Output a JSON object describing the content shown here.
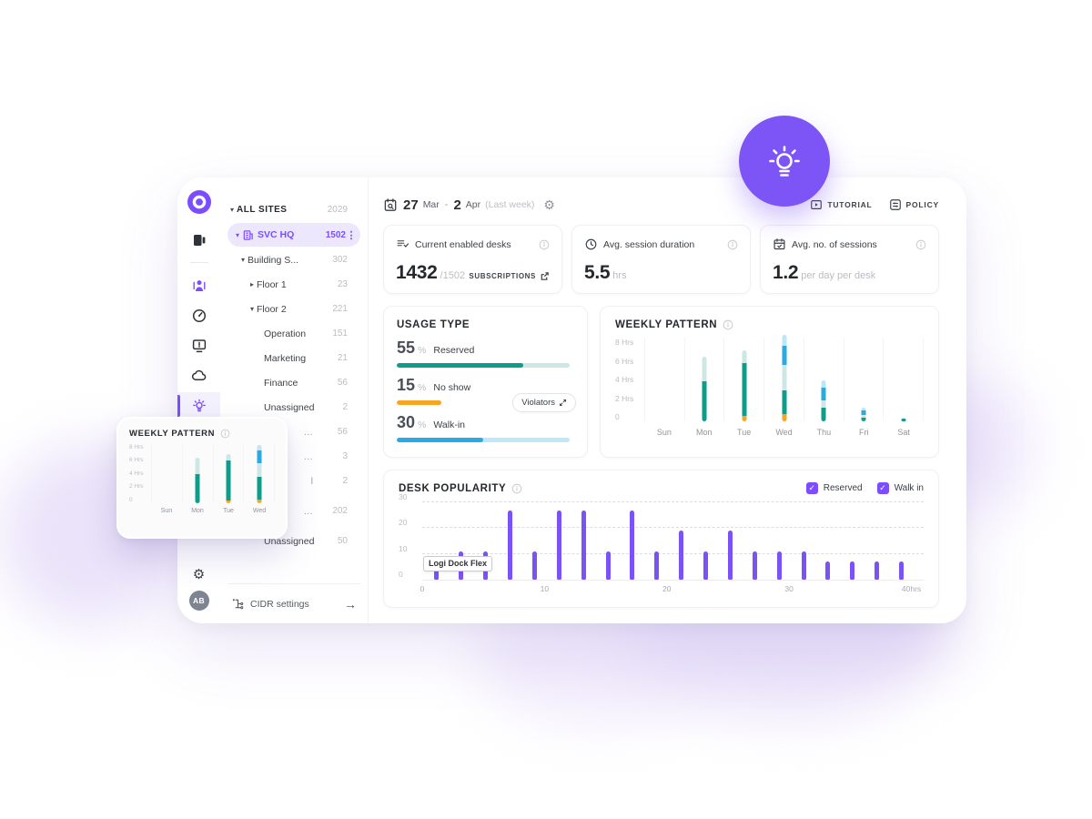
{
  "header": {
    "date": {
      "start_day": "27",
      "start_month": "Mar",
      "dash": "-",
      "end_day": "2",
      "end_month": "Apr",
      "range_note": "(Last week)"
    },
    "tutorial_label": "TUTORIAL",
    "policy_label": "POLICY"
  },
  "sidebar": {
    "avatar_initials": "AB"
  },
  "tree": {
    "all_sites": {
      "label": "ALL SITES",
      "count": "2029"
    },
    "items": [
      {
        "label": "SVC HQ",
        "count": "1502"
      },
      {
        "label": "Building S...",
        "count": "302"
      },
      {
        "label": "Floor 1",
        "count": "23"
      },
      {
        "label": "Floor 2",
        "count": "221"
      },
      {
        "label": "Operation",
        "count": "151"
      },
      {
        "label": "Marketing",
        "count": "21"
      },
      {
        "label": "Finance",
        "count": "56"
      },
      {
        "label": "Unassigned",
        "count": "2"
      },
      {
        "label": "…",
        "count": "56"
      },
      {
        "label": "…",
        "count": "3"
      },
      {
        "label": "l",
        "count": "2"
      },
      {
        "label": "…",
        "count": "202"
      },
      {
        "label": "Unassigned",
        "count": "50"
      }
    ],
    "cidr_label": "CIDR settings"
  },
  "stats": [
    {
      "title": "Current enabled desks",
      "value": "1432",
      "sub": "/1502",
      "link": "SUBSCRIPTIONS"
    },
    {
      "title": "Avg. session duration",
      "value": "5.5",
      "sub": "hrs"
    },
    {
      "title": "Avg. no. of sessions",
      "value": "1.2",
      "sub": "per day per desk"
    }
  ],
  "usage": {
    "title": "USAGE TYPE",
    "violators_label": "Violators",
    "rows": [
      {
        "value": "55",
        "unit": "%",
        "label": "Reserved",
        "bar_fill_pct": 73,
        "color": "#0e9c8b",
        "track": "#cde7e4"
      },
      {
        "value": "15",
        "unit": "%",
        "label": "No show",
        "bar_fill_pct": 26,
        "color": "#f6a623",
        "track": "transparent"
      },
      {
        "value": "30",
        "unit": "%",
        "label": "Walk-in",
        "bar_fill_pct": 50,
        "color": "#2baae2",
        "track": "#bfe9fa"
      }
    ]
  },
  "colors": {
    "accent": "#7c4dff",
    "teal": "#0e9c8b",
    "teal_light": "#cde7e4",
    "blue": "#2baae2",
    "blue_light": "#bde6f7",
    "orange": "#f6a623",
    "bar_purple": "#7b52f5"
  },
  "chart_data": [
    {
      "id": "weekly_main",
      "type": "bar",
      "title": "WEEKLY PATTERN",
      "stacked": true,
      "categories": [
        "Sun",
        "Mon",
        "Tue",
        "Wed",
        "Thu",
        "Fri",
        "Sat"
      ],
      "yticks": [
        "8 Hrs",
        "6 Hrs",
        "4 Hrs",
        "2 Hrs",
        "0"
      ],
      "ylim": [
        0,
        8
      ],
      "ylabel": "Hrs",
      "grid": "vertical",
      "colors": {
        "orange": "#f6a623",
        "teal": "#0e9c8b",
        "teal_light": "#cde7e4",
        "blue": "#2baae2",
        "blue_light": "#bde6f7"
      },
      "bars": [
        {
          "day": "Sun",
          "segments": []
        },
        {
          "day": "Mon",
          "segments": [
            [
              "teal",
              3.8
            ],
            [
              "teal_light",
              2.4
            ]
          ]
        },
        {
          "day": "Tue",
          "segments": [
            [
              "orange",
              0.5
            ],
            [
              "teal",
              5.1
            ],
            [
              "teal_light",
              1.2
            ]
          ]
        },
        {
          "day": "Wed",
          "segments": [
            [
              "orange",
              0.7
            ],
            [
              "teal",
              2.3
            ],
            [
              "teal_light",
              2.4
            ],
            [
              "blue",
              1.8
            ],
            [
              "blue_light",
              1.1
            ]
          ]
        },
        {
          "day": "Thu",
          "segments": [
            [
              "teal",
              1.3
            ],
            [
              "teal_light",
              0.7
            ],
            [
              "blue",
              1.2
            ],
            [
              "blue_light",
              0.7
            ]
          ]
        },
        {
          "day": "Fri",
          "segments": [
            [
              "teal",
              0.35
            ],
            [
              "teal_light",
              0.25
            ],
            [
              "blue",
              0.45
            ],
            [
              "blue_light",
              0.25
            ]
          ]
        },
        {
          "day": "Sat",
          "segments": [
            [
              "teal",
              0.3
            ]
          ]
        }
      ]
    },
    {
      "id": "weekly_popover",
      "type": "bar",
      "title": "WEEKLY PATTERN",
      "stacked": true,
      "categories": [
        "Sun",
        "Mon",
        "Tue",
        "Wed"
      ],
      "yticks": [
        "8 Hrs",
        "6 Hrs",
        "4 Hrs",
        "2 Hrs",
        "0"
      ],
      "ylim": [
        0,
        8
      ],
      "ylabel": "Hrs",
      "grid": "vertical",
      "colors": {
        "orange": "#f6a623",
        "teal": "#0e9c8b",
        "teal_light": "#cde7e4",
        "blue": "#2baae2",
        "blue_light": "#bde6f7"
      },
      "bars": [
        {
          "day": "Sun",
          "segments": []
        },
        {
          "day": "Mon",
          "segments": [
            [
              "teal",
              3.9
            ],
            [
              "teal_light",
              2.3
            ]
          ]
        },
        {
          "day": "Tue",
          "segments": [
            [
              "orange",
              0.4
            ],
            [
              "teal",
              5.4
            ],
            [
              "teal_light",
              0.9
            ]
          ]
        },
        {
          "day": "Wed",
          "segments": [
            [
              "orange",
              0.5
            ],
            [
              "teal",
              3.0
            ],
            [
              "teal_light",
              1.9
            ],
            [
              "blue",
              1.7
            ],
            [
              "blue_light",
              0.8
            ]
          ]
        }
      ]
    },
    {
      "id": "desk_popularity",
      "type": "bar",
      "title": "DESK POPULARITY",
      "x": [
        1,
        3,
        5,
        7,
        9,
        11,
        13,
        15,
        17,
        19,
        21,
        23,
        25,
        27,
        29,
        31,
        33,
        35,
        37,
        39
      ],
      "values": [
        5,
        11,
        11,
        27,
        11,
        27,
        27,
        11,
        27,
        11,
        19,
        11,
        19,
        11,
        11,
        11,
        7,
        7,
        7,
        7
      ],
      "xlabel": "hrs",
      "xticks": [
        {
          "v": 0,
          "label": "0"
        },
        {
          "v": 10,
          "label": "10"
        },
        {
          "v": 20,
          "label": "20"
        },
        {
          "v": 30,
          "label": "30"
        },
        {
          "v": 40,
          "label": "40hrs"
        }
      ],
      "xlim": [
        0,
        41
      ],
      "yticks": [
        30,
        20,
        10,
        0
      ],
      "ylim": [
        0,
        30
      ],
      "grid": "horizontal-dashed",
      "bar_color": "#7b52f5",
      "tooltip": "Logi Dock Flex",
      "legend": [
        {
          "label": "Reserved",
          "checked": true
        },
        {
          "label": "Walk in",
          "checked": true
        }
      ]
    }
  ]
}
